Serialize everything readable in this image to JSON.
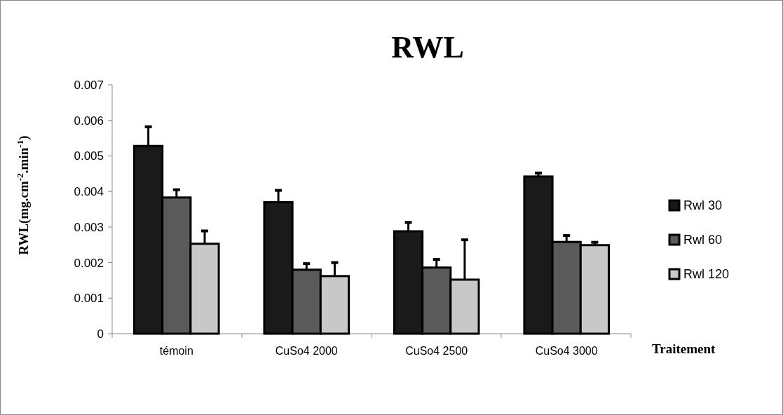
{
  "chart_data": {
    "type": "bar",
    "title": "RWL",
    "xlabel": "Traitement",
    "ylabel": "RWL(mg.cm$^{-2}$.min$^{-1}$)",
    "categories": [
      "témoin",
      "CuSo4 2000",
      "CuSo4 2500",
      "CuSo4 3000"
    ],
    "series": [
      {
        "name": "Rwl 30",
        "color": "#1a1a1a",
        "values": [
          0.00528,
          0.0037,
          0.00288,
          0.00442
        ],
        "errors": [
          [
            0.00528,
            0.00582
          ],
          [
            0.0037,
            0.00403
          ],
          [
            0.00288,
            0.00313
          ],
          [
            0.00442,
            0.00452
          ]
        ]
      },
      {
        "name": "Rwl 60",
        "color": "#5a5a5a",
        "values": [
          0.00383,
          0.0018,
          0.00186,
          0.00258
        ],
        "errors": [
          [
            0.00383,
            0.00405
          ],
          [
            0.0018,
            0.00197
          ],
          [
            0.00186,
            0.00209
          ],
          [
            0.00258,
            0.00276
          ]
        ]
      },
      {
        "name": "Rwl 120",
        "color": "#c8c8c8",
        "values": [
          0.00253,
          0.00162,
          0.00152,
          0.00249
        ],
        "errors": [
          [
            0.00253,
            0.00289
          ],
          [
            0.00162,
            0.002
          ],
          [
            0.00152,
            0.00264
          ],
          [
            0.00249,
            0.00257
          ]
        ]
      }
    ],
    "ylim": [
      0,
      0.007
    ],
    "yticks": [
      0,
      0.001,
      0.002,
      0.003,
      0.004,
      0.005,
      0.006,
      0.007
    ],
    "legend": "right",
    "grid": false
  }
}
